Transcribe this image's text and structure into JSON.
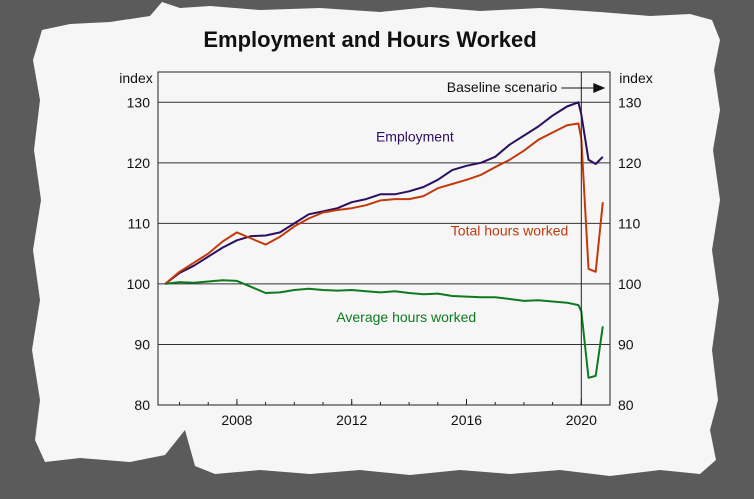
{
  "chart_data": {
    "type": "line",
    "title": "Employment and Hours Worked",
    "left_unit": "index",
    "right_unit": "index",
    "ylim": [
      80,
      135
    ],
    "yticks": [
      80,
      90,
      100,
      110,
      120,
      130
    ],
    "xlim": [
      2005.25,
      2021.0
    ],
    "xticks": [
      2008,
      2012,
      2016,
      2020
    ],
    "annotation": {
      "text": "Baseline scenario",
      "x": 2020.0
    },
    "grid": true,
    "series": [
      {
        "name": "Employment",
        "color": "#2b0f5e",
        "x": [
          2005.5,
          2006.0,
          2006.5,
          2007.0,
          2007.5,
          2008.0,
          2008.5,
          2009.0,
          2009.5,
          2010.0,
          2010.5,
          2011.0,
          2011.5,
          2012.0,
          2012.5,
          2013.0,
          2013.5,
          2014.0,
          2014.5,
          2015.0,
          2015.5,
          2016.0,
          2016.5,
          2017.0,
          2017.5,
          2018.0,
          2018.5,
          2019.0,
          2019.5,
          2019.9,
          2020.0,
          2020.25,
          2020.5,
          2020.75
        ],
        "values": [
          100,
          101.8,
          103,
          104.5,
          106,
          107.2,
          107.9,
          108,
          108.5,
          110,
          111.5,
          112,
          112.5,
          113.5,
          114,
          114.8,
          114.8,
          115.3,
          116,
          117.2,
          118.8,
          119.5,
          120,
          121,
          123,
          124.5,
          126,
          127.8,
          129.3,
          130,
          128,
          120.5,
          119.8,
          121
        ]
      },
      {
        "name": "Total hours worked",
        "color": "#c23a0c",
        "x": [
          2005.5,
          2006.0,
          2006.5,
          2007.0,
          2007.5,
          2008.0,
          2008.5,
          2009.0,
          2009.5,
          2010.0,
          2010.5,
          2011.0,
          2011.5,
          2012.0,
          2012.5,
          2013.0,
          2013.5,
          2014.0,
          2014.5,
          2015.0,
          2015.5,
          2016.0,
          2016.5,
          2017.0,
          2017.5,
          2018.0,
          2018.5,
          2019.0,
          2019.5,
          2019.9,
          2020.0,
          2020.25,
          2020.5,
          2020.75
        ],
        "values": [
          100,
          102,
          103.5,
          105,
          107,
          108.5,
          107.5,
          106.5,
          107.8,
          109.5,
          110.8,
          111.8,
          112.2,
          112.5,
          113,
          113.8,
          114,
          114,
          114.5,
          115.8,
          116.5,
          117.2,
          118,
          119.3,
          120.5,
          122,
          123.8,
          125,
          126.2,
          126.5,
          124,
          102.5,
          102,
          113.5
        ]
      },
      {
        "name": "Average hours worked",
        "color": "#0d7a1f",
        "x": [
          2005.5,
          2006.0,
          2006.5,
          2007.0,
          2007.5,
          2008.0,
          2008.5,
          2009.0,
          2009.5,
          2010.0,
          2010.5,
          2011.0,
          2011.5,
          2012.0,
          2012.5,
          2013.0,
          2013.5,
          2014.0,
          2014.5,
          2015.0,
          2015.5,
          2016.0,
          2016.5,
          2017.0,
          2017.5,
          2018.0,
          2018.5,
          2019.0,
          2019.5,
          2019.9,
          2020.0,
          2020.25,
          2020.5,
          2020.75
        ],
        "values": [
          100,
          100.3,
          100.2,
          100.4,
          100.6,
          100.5,
          99.5,
          98.5,
          98.6,
          99,
          99.2,
          99,
          98.9,
          99,
          98.8,
          98.6,
          98.8,
          98.5,
          98.3,
          98.4,
          98,
          97.9,
          97.8,
          97.8,
          97.5,
          97.2,
          97.3,
          97.1,
          96.9,
          96.5,
          95.5,
          84.5,
          84.8,
          93
        ]
      }
    ],
    "label_positions": [
      {
        "series": 0,
        "x": 2014.2,
        "y": 123.5
      },
      {
        "series": 1,
        "x": 2017.5,
        "y": 108
      },
      {
        "series": 2,
        "x": 2013.9,
        "y": 93.7
      }
    ]
  }
}
